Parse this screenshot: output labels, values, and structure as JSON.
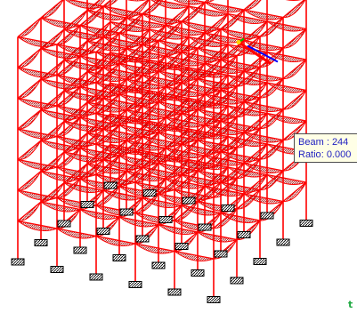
{
  "structure": {
    "member_color": "#ff0000",
    "hatch_color": "#c02020",
    "support_color": "#000000",
    "selected_member": {
      "beam_number": "244",
      "ratio": "0.000"
    },
    "axis_colors": {
      "x": "#ff0000",
      "y": "#00c000",
      "z": "#0000ff"
    }
  },
  "tooltip": {
    "beam_label": "Beam",
    "beam_value": "244",
    "ratio_label": "Ratio",
    "ratio_value": "0.000",
    "separator": ":"
  },
  "corner_glyph": "t"
}
